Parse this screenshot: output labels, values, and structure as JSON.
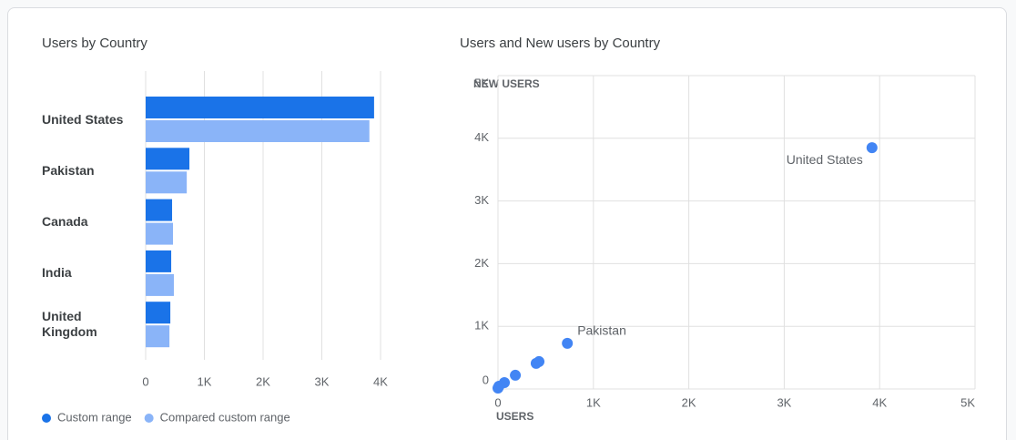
{
  "chart_data": [
    {
      "type": "bar",
      "orientation": "horizontal",
      "title": "Users by Country",
      "categories": [
        "United States",
        "Pakistan",
        "Canada",
        "India",
        "United Kingdom"
      ],
      "series": [
        {
          "name": "Custom range",
          "color": "#1a73e8",
          "values": [
            3890,
            745,
            450,
            435,
            420
          ]
        },
        {
          "name": "Compared custom range",
          "color": "#8ab4f8",
          "values": [
            3810,
            700,
            465,
            480,
            405
          ]
        }
      ],
      "xlim": [
        0,
        4000
      ],
      "xticks": [
        0,
        {
          "value": 1000,
          "label": "1K"
        },
        {
          "value": 2000,
          "label": "2K"
        },
        {
          "value": 3000,
          "label": "3K"
        },
        {
          "value": 4000,
          "label": "4K"
        }
      ],
      "grid": true,
      "legend": "bottom-left"
    },
    {
      "type": "scatter",
      "title": "Users and New users by Country",
      "xlabel": "USERS",
      "ylabel": "NEW USERS",
      "series": [
        {
          "color": "#4285f4",
          "x": [
            3920,
            727,
            430,
            400,
            182,
            67,
            10,
            0
          ],
          "y": [
            3850,
            729,
            437,
            408,
            219,
            102,
            44,
            15
          ],
          "labels": [
            "United States",
            "Pakistan",
            null,
            null,
            null,
            null,
            null,
            null
          ]
        }
      ],
      "xlim": [
        0,
        5000
      ],
      "ylim": [
        0,
        5000
      ],
      "xticks": [
        0,
        {
          "value": 1000,
          "label": "1K"
        },
        {
          "value": 2000,
          "label": "2K"
        },
        {
          "value": 3000,
          "label": "3K"
        },
        {
          "value": 4000,
          "label": "4K"
        },
        {
          "value": 5000,
          "label": "5K"
        }
      ],
      "yticks": [
        0,
        {
          "value": 1000,
          "label": "1K"
        },
        {
          "value": 2000,
          "label": "2K"
        },
        {
          "value": 3000,
          "label": "3K"
        },
        {
          "value": 4000,
          "label": "4K"
        },
        {
          "value": 5000,
          "label": "5K"
        }
      ],
      "grid": true
    }
  ]
}
